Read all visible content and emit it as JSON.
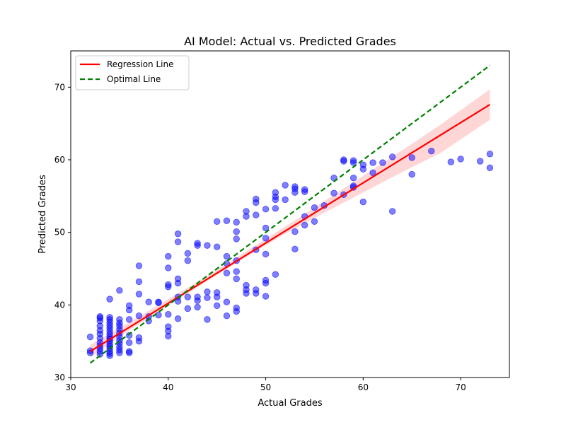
{
  "chart_data": {
    "type": "scatter",
    "title": "AI Model: Actual vs. Predicted Grades",
    "xlabel": "Actual Grades",
    "ylabel": "Predicted Grades",
    "xlim": [
      30,
      75
    ],
    "ylim": [
      30,
      75
    ],
    "xticks": [
      30,
      40,
      50,
      60,
      70
    ],
    "yticks": [
      30,
      40,
      50,
      60,
      70
    ],
    "grid": false,
    "legend": "upper-left",
    "colors": {
      "points": "#0000ff",
      "regression": "#ff0000",
      "confidence_band": "#ffcccc",
      "optimal": "#008000"
    },
    "series": [
      {
        "name": "",
        "type": "scatter",
        "points": [
          [
            32,
            33.4
          ],
          [
            32,
            33.7
          ],
          [
            32,
            35.6
          ],
          [
            33,
            33.2
          ],
          [
            33,
            33.6
          ],
          [
            33,
            34.0
          ],
          [
            33,
            34.4
          ],
          [
            33,
            34.8
          ],
          [
            33,
            35.4
          ],
          [
            33,
            36.0
          ],
          [
            33,
            36.5
          ],
          [
            33,
            37.1
          ],
          [
            33,
            37.8
          ],
          [
            33,
            38.2
          ],
          [
            33,
            38.4
          ],
          [
            34,
            33.0
          ],
          [
            34,
            33.3
          ],
          [
            34,
            33.6
          ],
          [
            34,
            34.0
          ],
          [
            34,
            34.3
          ],
          [
            34,
            34.6
          ],
          [
            34,
            35.0
          ],
          [
            34,
            35.3
          ],
          [
            34,
            35.6
          ],
          [
            34,
            36.0
          ],
          [
            34,
            36.4
          ],
          [
            34,
            36.8
          ],
          [
            34,
            37.2
          ],
          [
            34,
            37.6
          ],
          [
            34,
            38.0
          ],
          [
            34,
            38.3
          ],
          [
            34,
            40.8
          ],
          [
            35,
            33.4
          ],
          [
            35,
            33.8
          ],
          [
            35,
            34.2
          ],
          [
            35,
            34.7
          ],
          [
            35,
            35.1
          ],
          [
            35,
            35.6
          ],
          [
            35,
            36.1
          ],
          [
            35,
            36.6
          ],
          [
            35,
            37.1
          ],
          [
            35,
            37.5
          ],
          [
            35,
            38.0
          ],
          [
            35,
            42.0
          ],
          [
            36,
            33.4
          ],
          [
            36,
            33.6
          ],
          [
            36,
            34.8
          ],
          [
            36,
            35.8
          ],
          [
            36,
            38.0
          ],
          [
            36,
            39.3
          ],
          [
            36,
            39.9
          ],
          [
            37,
            35.0
          ],
          [
            37,
            35.5
          ],
          [
            37,
            38.5
          ],
          [
            37,
            41.5
          ],
          [
            37,
            43.2
          ],
          [
            37,
            45.4
          ],
          [
            38,
            37.8
          ],
          [
            38,
            38.4
          ],
          [
            38,
            40.4
          ],
          [
            39,
            38.6
          ],
          [
            39,
            40.3
          ],
          [
            39,
            40.4
          ],
          [
            40,
            35.7
          ],
          [
            40,
            36.4
          ],
          [
            40,
            37.0
          ],
          [
            40,
            38.7
          ],
          [
            40,
            42.5
          ],
          [
            40,
            42.8
          ],
          [
            40,
            45.1
          ],
          [
            40,
            46.7
          ],
          [
            41,
            38.1
          ],
          [
            41,
            40.5
          ],
          [
            41,
            41.1
          ],
          [
            41,
            43.0
          ],
          [
            41,
            43.6
          ],
          [
            41,
            48.7
          ],
          [
            41,
            49.8
          ],
          [
            42,
            39.5
          ],
          [
            42,
            41.1
          ],
          [
            42,
            46.1
          ],
          [
            42,
            47.1
          ],
          [
            43,
            39.7
          ],
          [
            43,
            40.6
          ],
          [
            43,
            41.1
          ],
          [
            43,
            48.2
          ],
          [
            43,
            48.5
          ],
          [
            44,
            38.0
          ],
          [
            44,
            41.0
          ],
          [
            44,
            41.8
          ],
          [
            44,
            48.2
          ],
          [
            45,
            39.9
          ],
          [
            45,
            41.1
          ],
          [
            45,
            41.7
          ],
          [
            45,
            48.0
          ],
          [
            45,
            51.5
          ],
          [
            46,
            38.5
          ],
          [
            46,
            40.4
          ],
          [
            46,
            44.4
          ],
          [
            46,
            45.7
          ],
          [
            46,
            46.7
          ],
          [
            46,
            51.6
          ],
          [
            47,
            39.1
          ],
          [
            47,
            39.6
          ],
          [
            47,
            43.6
          ],
          [
            47,
            44.6
          ],
          [
            47,
            46.1
          ],
          [
            47,
            49.1
          ],
          [
            47,
            50.1
          ],
          [
            47,
            51.4
          ],
          [
            48,
            41.6
          ],
          [
            48,
            42.1
          ],
          [
            48,
            42.7
          ],
          [
            48,
            52.2
          ],
          [
            48,
            52.9
          ],
          [
            49,
            41.6
          ],
          [
            49,
            42.1
          ],
          [
            49,
            47.6
          ],
          [
            49,
            52.4
          ],
          [
            49,
            54.1
          ],
          [
            49,
            54.6
          ],
          [
            50,
            41.2
          ],
          [
            50,
            43.0
          ],
          [
            50,
            43.4
          ],
          [
            50,
            47.0
          ],
          [
            50,
            49.2
          ],
          [
            50,
            50.6
          ],
          [
            50,
            53.2
          ],
          [
            51,
            44.2
          ],
          [
            51,
            53.3
          ],
          [
            51,
            54.5
          ],
          [
            51,
            54.9
          ],
          [
            51,
            55.5
          ],
          [
            52,
            54.5
          ],
          [
            52,
            56.5
          ],
          [
            53,
            47.7
          ],
          [
            53,
            50.1
          ],
          [
            53,
            55.5
          ],
          [
            53,
            56.0
          ],
          [
            53,
            56.3
          ],
          [
            54,
            51.0
          ],
          [
            54,
            52.2
          ],
          [
            54,
            55.6
          ],
          [
            54,
            55.9
          ],
          [
            55,
            51.5
          ],
          [
            55,
            53.4
          ],
          [
            56,
            53.7
          ],
          [
            57,
            55.4
          ],
          [
            57,
            57.5
          ],
          [
            58,
            55.2
          ],
          [
            58,
            59.8
          ],
          [
            58,
            60.0
          ],
          [
            59,
            56.2
          ],
          [
            59,
            56.4
          ],
          [
            59,
            57.5
          ],
          [
            59,
            59.6
          ],
          [
            59,
            59.9
          ],
          [
            60,
            54.2
          ],
          [
            60,
            58.7
          ],
          [
            60,
            59.3
          ],
          [
            61,
            58.2
          ],
          [
            61,
            59.6
          ],
          [
            62,
            59.6
          ],
          [
            63,
            52.9
          ],
          [
            63,
            60.4
          ],
          [
            65,
            58.0
          ],
          [
            65,
            60.3
          ],
          [
            67,
            61.2
          ],
          [
            69,
            59.7
          ],
          [
            70,
            60.1
          ],
          [
            72,
            59.8
          ],
          [
            73,
            58.9
          ],
          [
            73,
            60.8
          ]
        ]
      },
      {
        "name": "Regression Line",
        "type": "line",
        "style": "solid",
        "x": [
          32,
          73
        ],
        "y": [
          33.6,
          67.6
        ],
        "band_x": [
          32,
          36,
          40,
          44,
          48,
          52,
          56,
          60,
          64,
          68,
          73
        ],
        "band_low": [
          32.8,
          36.5,
          39.9,
          43.3,
          46.6,
          49.8,
          52.7,
          55.5,
          58.3,
          61.0,
          65.5
        ],
        "band_high": [
          34.5,
          37.6,
          40.8,
          44.0,
          47.4,
          50.8,
          54.3,
          57.8,
          61.3,
          64.9,
          69.7
        ]
      },
      {
        "name": "Optimal Line",
        "type": "line",
        "style": "dashed",
        "x": [
          32,
          73
        ],
        "y": [
          32,
          73
        ]
      }
    ]
  }
}
